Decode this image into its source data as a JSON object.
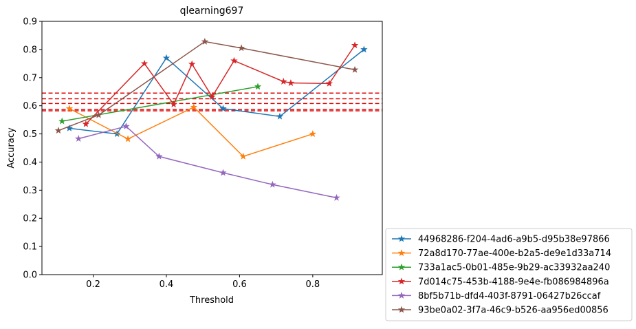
{
  "chart_data": {
    "type": "line",
    "title": "qlearning697",
    "xlabel": "Threshold",
    "ylabel": "Accuracy",
    "xlim": [
      0.06,
      0.99
    ],
    "ylim": [
      0.0,
      0.9
    ],
    "xticks": [
      0.2,
      0.4,
      0.6,
      0.8
    ],
    "xtick_labels": [
      "0.2",
      "0.4",
      "0.6",
      "0.8"
    ],
    "yticks": [
      0.0,
      0.1,
      0.2,
      0.3,
      0.4,
      0.5,
      0.6,
      0.7,
      0.8,
      0.9
    ],
    "ytick_labels": [
      "0.0",
      "0.1",
      "0.2",
      "0.3",
      "0.4",
      "0.5",
      "0.6",
      "0.7",
      "0.8",
      "0.9"
    ],
    "grid": false,
    "legend_position": "outside-bottom-right",
    "marker": "star",
    "hlines": {
      "color": "#e00000",
      "style": "dashed",
      "values": [
        0.645,
        0.625,
        0.608,
        0.587,
        0.582
      ]
    },
    "series": [
      {
        "name": "44968286-f204-4ad6-a9b5-d95b38e97866",
        "color": "#1f77b4",
        "x": [
          0.135,
          0.265,
          0.4,
          0.555,
          0.71,
          0.94
        ],
        "y": [
          0.52,
          0.5,
          0.77,
          0.59,
          0.562,
          0.8
        ]
      },
      {
        "name": "72a8d170-77ae-400e-b2a5-de9e1d33a714",
        "color": "#ff7f0e",
        "x": [
          0.135,
          0.295,
          0.475,
          0.61,
          0.8
        ],
        "y": [
          0.59,
          0.482,
          0.595,
          0.42,
          0.5
        ]
      },
      {
        "name": "733a1ac5-0b01-485e-9b29-ac33932aa240",
        "color": "#2ca02c",
        "x": [
          0.115,
          0.65
        ],
        "y": [
          0.545,
          0.668
        ]
      },
      {
        "name": "7d014c75-453b-4188-9e4e-fb086984896a",
        "color": "#d62728",
        "x": [
          0.18,
          0.34,
          0.42,
          0.47,
          0.525,
          0.585,
          0.72,
          0.74,
          0.845,
          0.915
        ],
        "y": [
          0.535,
          0.75,
          0.605,
          0.748,
          0.632,
          0.76,
          0.686,
          0.681,
          0.679,
          0.815
        ]
      },
      {
        "name": "8bf5b71b-dfd4-403f-8791-06427b26ccaf",
        "color": "#9467bd",
        "x": [
          0.16,
          0.29,
          0.38,
          0.555,
          0.69,
          0.865
        ],
        "y": [
          0.483,
          0.527,
          0.42,
          0.362,
          0.32,
          0.273
        ]
      },
      {
        "name": "93be0a02-3f7a-46c9-b526-aa956ed00856",
        "color": "#8c564b",
        "x": [
          0.105,
          0.215,
          0.505,
          0.605,
          0.915
        ],
        "y": [
          0.512,
          0.567,
          0.828,
          0.805,
          0.728
        ]
      }
    ]
  }
}
